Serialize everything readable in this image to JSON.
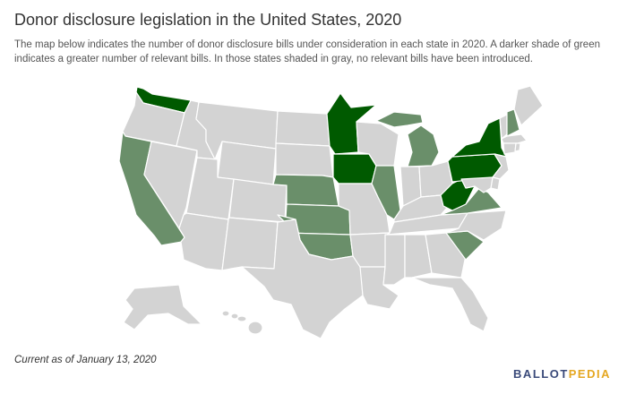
{
  "header": {
    "title": "Donor disclosure legislation in the United States, 2020",
    "subtitle": "The map below indicates the number of donor disclosure bills under consideration in each state in 2020. A darker shade of green indicates a greater number of relevant bills. In those states shaded in gray, no relevant bills have been introduced."
  },
  "footer": {
    "note": "Current as of January 13, 2020",
    "logo_part1": "BALLOT",
    "logo_part2": "PEDIA"
  },
  "colors": {
    "none": "#d3d3d3",
    "some": "#6a8f6a",
    "many": "#005a00",
    "logo_blue": "#3a4a7a",
    "logo_gold": "#e5a823"
  },
  "map": {
    "legend_levels": [
      "none",
      "some",
      "many"
    ],
    "states": {
      "WA": "many",
      "OR": "none",
      "CA": "some",
      "NV": "none",
      "ID": "none",
      "MT": "none",
      "WY": "none",
      "UT": "none",
      "AZ": "none",
      "CO": "none",
      "NM": "none",
      "ND": "none",
      "SD": "none",
      "NE": "some",
      "KS": "some",
      "OK": "some",
      "TX": "none",
      "MN": "many",
      "IA": "many",
      "MO": "none",
      "AR": "none",
      "LA": "none",
      "WI": "none",
      "IL": "some",
      "MI": "some",
      "IN": "none",
      "OH": "none",
      "KY": "none",
      "TN": "none",
      "MS": "none",
      "AL": "none",
      "GA": "none",
      "FL": "none",
      "SC": "some",
      "NC": "none",
      "VA": "some",
      "WV": "many",
      "PA": "many",
      "NY": "many",
      "VT": "none",
      "NH": "some",
      "ME": "none",
      "MA": "none",
      "CT": "none",
      "RI": "none",
      "NJ": "none",
      "DE": "none",
      "MD": "none",
      "AK": "none",
      "HI": "none"
    }
  }
}
